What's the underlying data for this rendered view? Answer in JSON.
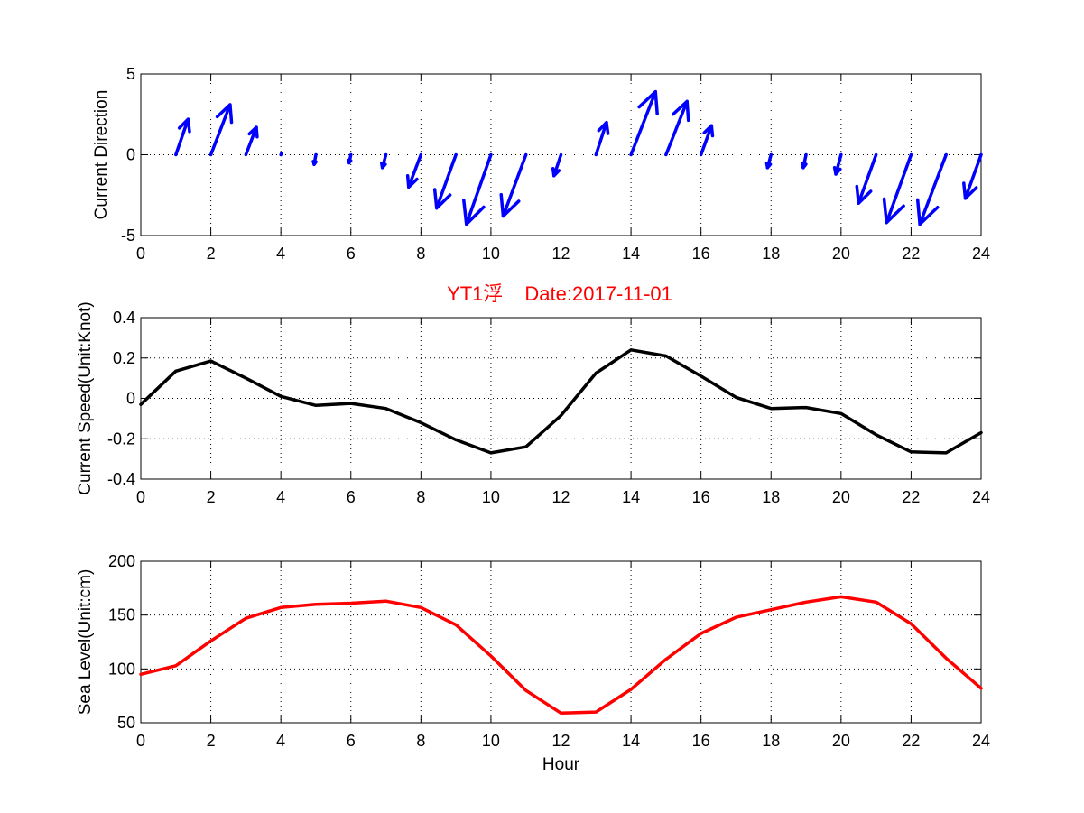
{
  "chart_data": [
    {
      "type": "quiver",
      "ylabel": "Current Direction",
      "xlabel": "",
      "xlim": [
        0,
        24
      ],
      "ylim": [
        -5,
        5
      ],
      "xticks": [
        0,
        2,
        4,
        6,
        8,
        10,
        12,
        14,
        16,
        18,
        20,
        22,
        24
      ],
      "yticks": [
        -5,
        0,
        5
      ],
      "grid": true,
      "color": "#0000ff",
      "arrows": [
        {
          "x": 1,
          "u": 0.35,
          "v": 2.2
        },
        {
          "x": 2,
          "u": 0.55,
          "v": 3.1
        },
        {
          "x": 3,
          "u": 0.3,
          "v": 1.7
        },
        {
          "x": 4,
          "u": 0.02,
          "v": 0.1
        },
        {
          "x": 5,
          "u": -0.05,
          "v": -0.6
        },
        {
          "x": 6,
          "u": -0.05,
          "v": -0.5
        },
        {
          "x": 7,
          "u": -0.1,
          "v": -0.8
        },
        {
          "x": 8,
          "u": -0.35,
          "v": -2.0
        },
        {
          "x": 9,
          "u": -0.55,
          "v": -3.3
        },
        {
          "x": 10,
          "u": -0.7,
          "v": -4.3
        },
        {
          "x": 11,
          "u": -0.65,
          "v": -3.8
        },
        {
          "x": 12,
          "u": -0.2,
          "v": -1.3
        },
        {
          "x": 13,
          "u": 0.3,
          "v": 2.0
        },
        {
          "x": 14,
          "u": 0.7,
          "v": 3.9
        },
        {
          "x": 15,
          "u": 0.6,
          "v": 3.3
        },
        {
          "x": 16,
          "u": 0.3,
          "v": 1.8
        },
        {
          "x": 18,
          "u": -0.1,
          "v": -0.8
        },
        {
          "x": 19,
          "u": -0.08,
          "v": -0.8
        },
        {
          "x": 20,
          "u": -0.15,
          "v": -1.2
        },
        {
          "x": 21,
          "u": -0.5,
          "v": -3.0
        },
        {
          "x": 22,
          "u": -0.7,
          "v": -4.2
        },
        {
          "x": 23,
          "u": -0.75,
          "v": -4.3
        },
        {
          "x": 24,
          "u": -0.45,
          "v": -2.7
        }
      ]
    },
    {
      "type": "line",
      "title_left": "YT1浮",
      "title_right": "Date:2017-11-01",
      "title_color": "#ff0000",
      "ylabel": "Current Speed(Unit:Knot)",
      "xlabel": "",
      "xlim": [
        0,
        24
      ],
      "ylim": [
        -0.4,
        0.4
      ],
      "xticks": [
        0,
        2,
        4,
        6,
        8,
        10,
        12,
        14,
        16,
        18,
        20,
        22,
        24
      ],
      "yticks": [
        -0.4,
        -0.2,
        0,
        0.2,
        0.4
      ],
      "ytick_labels": [
        "-0.4",
        "-0.2",
        "0",
        "0.2",
        "0.4"
      ],
      "grid": true,
      "series": [
        {
          "color": "#000000",
          "x": [
            0,
            1,
            2,
            3,
            4,
            5,
            6,
            7,
            8,
            9,
            10,
            11,
            12,
            13,
            14,
            15,
            16,
            17,
            18,
            19,
            20,
            21,
            22,
            23,
            24
          ],
          "values": [
            -0.03,
            0.135,
            0.185,
            0.1,
            0.01,
            -0.035,
            -0.025,
            -0.05,
            -0.12,
            -0.205,
            -0.27,
            -0.24,
            -0.085,
            0.125,
            0.24,
            0.21,
            0.11,
            0.005,
            -0.05,
            -0.045,
            -0.075,
            -0.18,
            -0.265,
            -0.27,
            -0.17
          ]
        }
      ]
    },
    {
      "type": "line",
      "ylabel": "Sea Level(Unit:cm)",
      "xlabel": "Hour",
      "xlim": [
        0,
        24
      ],
      "ylim": [
        50,
        200
      ],
      "xticks": [
        0,
        2,
        4,
        6,
        8,
        10,
        12,
        14,
        16,
        18,
        20,
        22,
        24
      ],
      "yticks": [
        50,
        100,
        150,
        200
      ],
      "grid": true,
      "series": [
        {
          "color": "#ff0000",
          "x": [
            0,
            1,
            2,
            3,
            4,
            5,
            6,
            7,
            8,
            9,
            10,
            11,
            12,
            13,
            14,
            15,
            16,
            17,
            18,
            19,
            20,
            21,
            22,
            23,
            24
          ],
          "values": [
            95,
            103,
            126,
            147,
            157,
            160,
            161,
            163,
            157,
            141,
            112,
            80,
            59,
            60,
            81,
            109,
            133,
            148,
            155,
            162,
            167,
            162,
            142,
            110,
            82
          ]
        }
      ]
    }
  ]
}
